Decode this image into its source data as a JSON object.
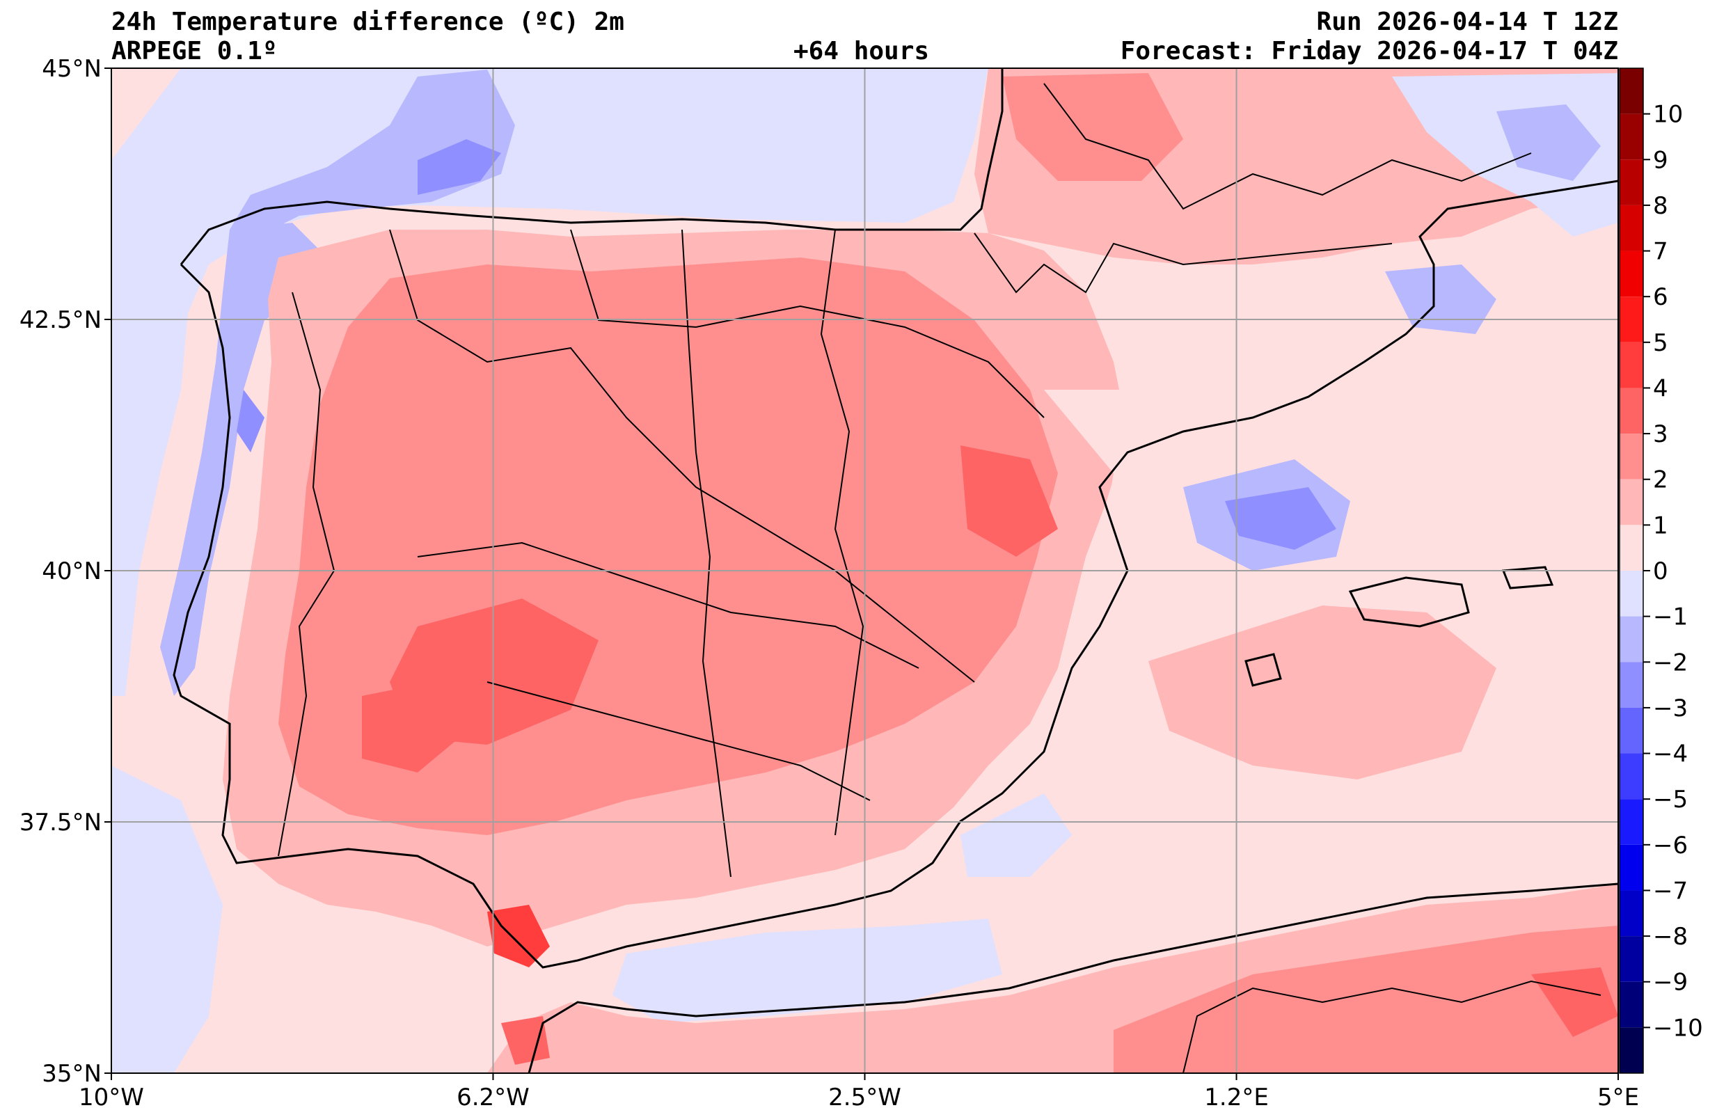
{
  "header": {
    "title": "24h Temperature difference (ºC) 2m",
    "model": "ARPEGE 0.1º",
    "lead_time": "+64 hours",
    "run": "Run 2026-04-14 T 12Z",
    "forecast": "Forecast: Friday 2026-04-17 T 04Z"
  },
  "map": {
    "lon_range": [
      -10,
      5
    ],
    "lat_range": [
      35,
      45
    ],
    "lon_ticks": [
      {
        "value": -10,
        "label": "10°W"
      },
      {
        "value": -6.2,
        "label": "6.2°W"
      },
      {
        "value": -2.5,
        "label": "2.5°W"
      },
      {
        "value": 1.2,
        "label": "1.2°E"
      },
      {
        "value": 5,
        "label": "5°E"
      }
    ],
    "lat_ticks": [
      {
        "value": 45,
        "label": "45°N"
      },
      {
        "value": 42.5,
        "label": "42.5°N"
      },
      {
        "value": 40,
        "label": "40°N"
      },
      {
        "value": 37.5,
        "label": "37.5°N"
      },
      {
        "value": 35,
        "label": "35°N"
      }
    ],
    "grid": true
  },
  "colorbar": {
    "range": [
      -11,
      11
    ],
    "levels": [
      {
        "value": 10,
        "color": "#7a0000"
      },
      {
        "value": 9,
        "color": "#990000"
      },
      {
        "value": 8,
        "color": "#b80000"
      },
      {
        "value": 7,
        "color": "#d60000"
      },
      {
        "value": 6,
        "color": "#f00000"
      },
      {
        "value": 5,
        "color": "#ff1a1a"
      },
      {
        "value": 4,
        "color": "#ff3d3d"
      },
      {
        "value": 3,
        "color": "#ff6464"
      },
      {
        "value": 2,
        "color": "#ff8f8f"
      },
      {
        "value": 1,
        "color": "#ffb7b7"
      },
      {
        "value": 0,
        "color": "#ffe0e0"
      },
      {
        "value": -1,
        "color": "#e0e0ff"
      },
      {
        "value": -2,
        "color": "#b8b8ff"
      },
      {
        "value": -3,
        "color": "#8f8fff"
      },
      {
        "value": -4,
        "color": "#6464ff"
      },
      {
        "value": -5,
        "color": "#3d3dff"
      },
      {
        "value": -6,
        "color": "#1a1aff"
      },
      {
        "value": -7,
        "color": "#0000ee"
      },
      {
        "value": -8,
        "color": "#0000c8"
      },
      {
        "value": -9,
        "color": "#0000a0"
      },
      {
        "value": -10,
        "color": "#000078"
      },
      {
        "value": -11,
        "color": "#000050"
      }
    ],
    "tick_labels": [
      "10",
      "9",
      "8",
      "7",
      "6",
      "5",
      "4",
      "3",
      "2",
      "1",
      "0",
      "−1",
      "−2",
      "−3",
      "−4",
      "−5",
      "−6",
      "−7",
      "−8",
      "−9",
      "−10"
    ]
  }
}
